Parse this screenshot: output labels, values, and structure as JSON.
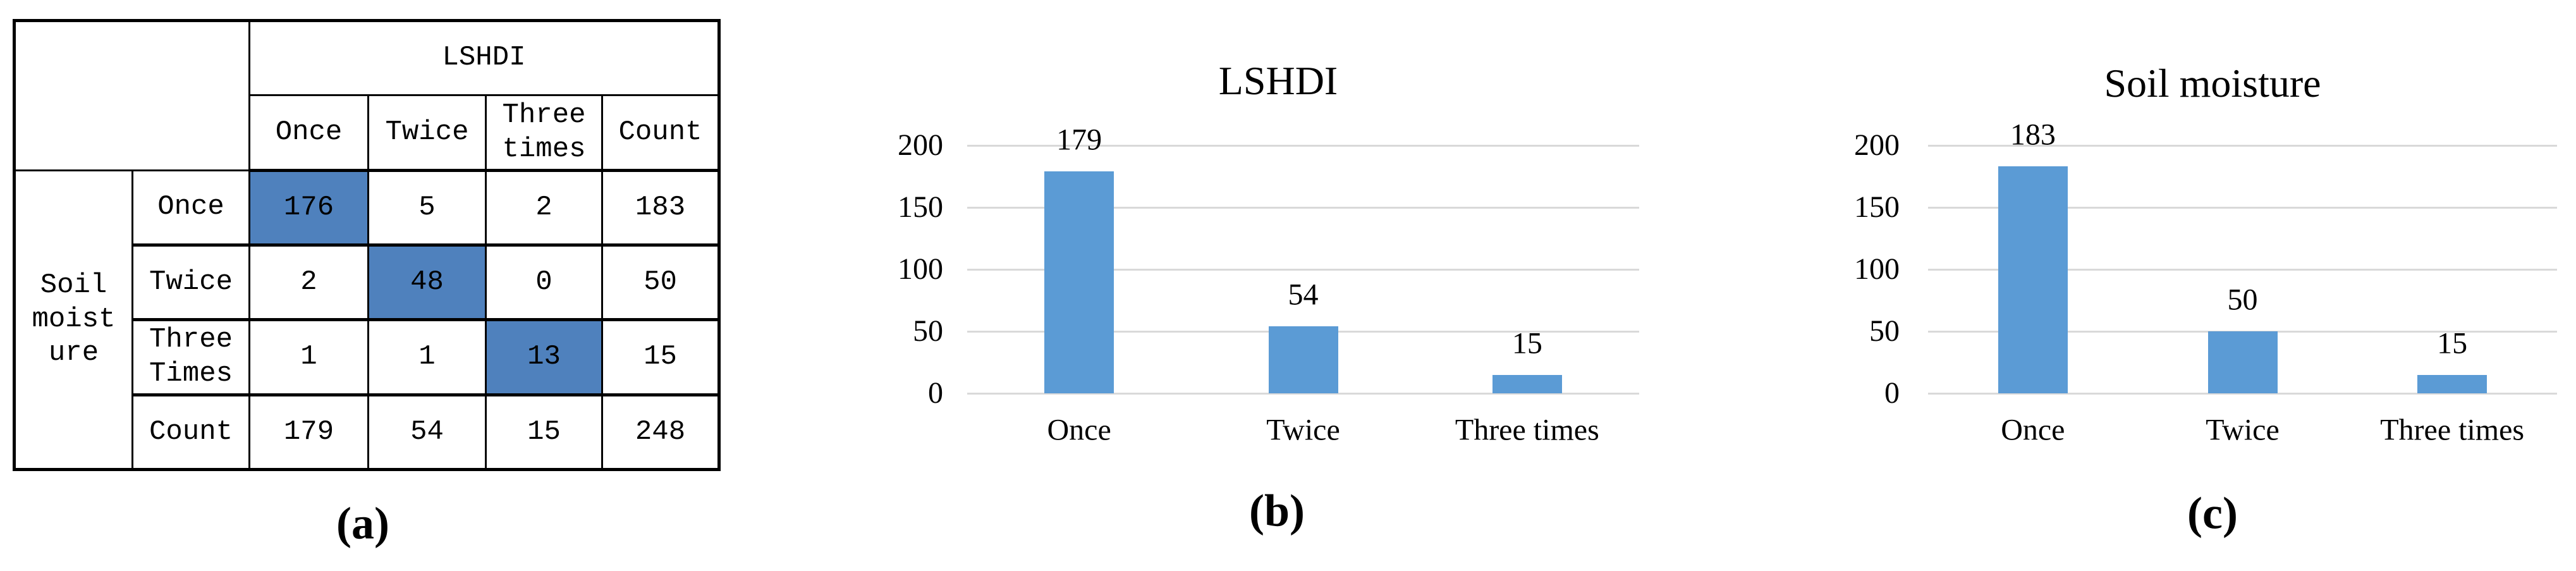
{
  "figure": {
    "captions": {
      "a": "(a)",
      "b": "(b)",
      "c": "(c)"
    }
  },
  "table": {
    "group_header": "LSHDI",
    "col_headers": [
      "Once",
      "Twice",
      "Three times",
      "Count"
    ],
    "row_group_label": "Soil moisture",
    "row_group_label_display": "Soil\nmoist\nure",
    "row_headers": [
      "Once",
      "Twice",
      "Three Times",
      "Count"
    ],
    "cells": [
      [
        "176",
        "5",
        "2",
        "183"
      ],
      [
        "2",
        "48",
        "0",
        "50"
      ],
      [
        "1",
        "1",
        "13",
        "15"
      ],
      [
        "179",
        "54",
        "15",
        "248"
      ]
    ],
    "highlight_color": "#4F81BD",
    "highlighted_cells": [
      [
        0,
        0
      ],
      [
        1,
        1
      ],
      [
        2,
        2
      ]
    ]
  },
  "chart_data": [
    {
      "type": "bar",
      "title": "LSHDI",
      "categories": [
        "Once",
        "Twice",
        "Three times"
      ],
      "values": [
        179,
        54,
        15
      ],
      "data_labels": [
        "179",
        "54",
        "15"
      ],
      "ytick_labels": [
        "0",
        "50",
        "100",
        "150",
        "200"
      ],
      "yticks": [
        0,
        50,
        100,
        150,
        200
      ],
      "ylim": [
        0,
        200
      ],
      "xlabel": "",
      "ylabel": "",
      "grid": "horizontal",
      "legend": "none",
      "bar_color": "#5B9BD5",
      "gridline_color": "#D9D9D9"
    },
    {
      "type": "bar",
      "title": "Soil moisture",
      "categories": [
        "Once",
        "Twice",
        "Three times"
      ],
      "values": [
        183,
        50,
        15
      ],
      "data_labels": [
        "183",
        "50",
        "15"
      ],
      "ytick_labels": [
        "0",
        "50",
        "100",
        "150",
        "200"
      ],
      "yticks": [
        0,
        50,
        100,
        150,
        200
      ],
      "ylim": [
        0,
        200
      ],
      "xlabel": "",
      "ylabel": "",
      "grid": "horizontal",
      "legend": "none",
      "bar_color": "#5B9BD5",
      "gridline_color": "#D9D9D9"
    }
  ]
}
